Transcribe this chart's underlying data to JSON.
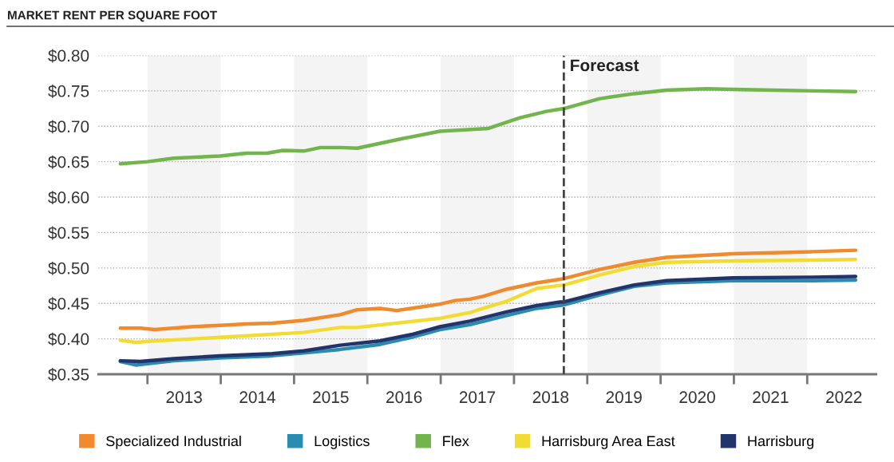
{
  "chart_data": {
    "type": "line",
    "title": "MARKET RENT PER SQUARE FOOT",
    "xlim": [
      2012.33,
      2022.94
    ],
    "ylim": [
      0.35,
      0.8
    ],
    "xticks": [
      {
        "value": 2013,
        "label": null
      },
      {
        "value": 2013.5,
        "label": "2013"
      },
      {
        "value": 2014,
        "label": null
      },
      {
        "value": 2014.5,
        "label": "2014"
      },
      {
        "value": 2015,
        "label": null
      },
      {
        "value": 2015.5,
        "label": "2015"
      },
      {
        "value": 2016,
        "label": null
      },
      {
        "value": 2016.5,
        "label": "2016"
      },
      {
        "value": 2017,
        "label": null
      },
      {
        "value": 2017.5,
        "label": "2017"
      },
      {
        "value": 2018,
        "label": null
      },
      {
        "value": 2018.5,
        "label": "2018"
      },
      {
        "value": 2019,
        "label": null
      },
      {
        "value": 2019.5,
        "label": "2019"
      },
      {
        "value": 2020,
        "label": null
      },
      {
        "value": 2020.5,
        "label": "2020"
      },
      {
        "value": 2021,
        "label": null
      },
      {
        "value": 2021.5,
        "label": "2021"
      },
      {
        "value": 2022,
        "label": null
      },
      {
        "value": 2022.5,
        "label": "2022"
      }
    ],
    "yticks": [
      {
        "value": 0.35,
        "label": "$0.35"
      },
      {
        "value": 0.4,
        "label": "$0.40"
      },
      {
        "value": 0.45,
        "label": "$0.45"
      },
      {
        "value": 0.5,
        "label": "$0.50"
      },
      {
        "value": 0.55,
        "label": "$0.55"
      },
      {
        "value": 0.6,
        "label": "$0.60"
      },
      {
        "value": 0.65,
        "label": "$0.65"
      },
      {
        "value": 0.7,
        "label": "$0.70"
      },
      {
        "value": 0.75,
        "label": "$0.75"
      },
      {
        "value": 0.8,
        "label": "$0.80"
      }
    ],
    "grid": "y",
    "legend": "bottom",
    "marker": "none",
    "line_style": "solid",
    "bands": [
      {
        "axis": "x",
        "from": 2013,
        "to": 2014,
        "color": "#f4f4f4"
      },
      {
        "axis": "x",
        "from": 2015,
        "to": 2016,
        "color": "#f4f4f4"
      },
      {
        "axis": "x",
        "from": 2017,
        "to": 2018,
        "color": "#f4f4f4"
      },
      {
        "axis": "x",
        "from": 2019,
        "to": 2020,
        "color": "#f4f4f4"
      },
      {
        "axis": "x",
        "from": 2021,
        "to": 2022,
        "color": "#f4f4f4"
      }
    ],
    "ref_lines": [
      {
        "axis": "x",
        "value": 2018.68,
        "label": "Forecast",
        "color": "#444444",
        "line_style": "dashed"
      }
    ],
    "series": [
      {
        "name": "Specialized Industrial",
        "color": "#f08a2c",
        "x": [
          2012.63,
          2012.9,
          2013.1,
          2013.6,
          2013.99,
          2014.35,
          2014.7,
          2015.13,
          2015.63,
          2015.86,
          2016.17,
          2016.4,
          2016.8,
          2016.99,
          2017.2,
          2017.4,
          2017.58,
          2017.9,
          2018.31,
          2018.63,
          2018.68,
          2019.17,
          2019.64,
          2020.08,
          2020.99,
          2022.08,
          2022.66
        ],
        "values": [
          0.415,
          0.415,
          0.413,
          0.417,
          0.419,
          0.421,
          0.422,
          0.426,
          0.434,
          0.441,
          0.443,
          0.44,
          0.446,
          0.449,
          0.454,
          0.456,
          0.46,
          0.47,
          0.479,
          0.484,
          0.485,
          0.498,
          0.508,
          0.515,
          0.52,
          0.523,
          0.525
        ]
      },
      {
        "name": "Logistics",
        "color": "#2a8bb0",
        "x": [
          2012.63,
          2012.84,
          2013.36,
          2013.99,
          2014.7,
          2015.13,
          2015.63,
          2016.17,
          2016.6,
          2016.99,
          2017.4,
          2017.9,
          2018.31,
          2018.63,
          2018.68,
          2019.17,
          2019.64,
          2020.08,
          2020.99,
          2022.08,
          2022.66
        ],
        "values": [
          0.368,
          0.363,
          0.369,
          0.373,
          0.376,
          0.38,
          0.385,
          0.392,
          0.402,
          0.413,
          0.42,
          0.433,
          0.443,
          0.447,
          0.448,
          0.462,
          0.474,
          0.479,
          0.482,
          0.482,
          0.483
        ]
      },
      {
        "name": "Flex",
        "color": "#72b54c",
        "x": [
          2012.63,
          2013.0,
          2013.36,
          2013.99,
          2014.35,
          2014.63,
          2014.85,
          2015.13,
          2015.36,
          2015.63,
          2015.86,
          2016.45,
          2016.99,
          2017.65,
          2018.08,
          2018.44,
          2018.68,
          2019.17,
          2019.64,
          2020.08,
          2020.62,
          2020.99,
          2021.54,
          2022.08,
          2022.66
        ],
        "values": [
          0.647,
          0.65,
          0.655,
          0.658,
          0.662,
          0.662,
          0.666,
          0.665,
          0.67,
          0.67,
          0.669,
          0.682,
          0.693,
          0.697,
          0.712,
          0.721,
          0.725,
          0.739,
          0.746,
          0.751,
          0.753,
          0.752,
          0.751,
          0.75,
          0.749
        ]
      },
      {
        "name": "Harrisburg Area East",
        "color": "#f2dc34",
        "x": [
          2012.63,
          2012.84,
          2013.1,
          2013.99,
          2015.13,
          2015.63,
          2015.86,
          2016.99,
          2017.4,
          2017.58,
          2017.9,
          2018.31,
          2018.68,
          2019.17,
          2019.64,
          2020.08,
          2020.99,
          2022.08,
          2022.66
        ],
        "values": [
          0.398,
          0.395,
          0.397,
          0.402,
          0.409,
          0.416,
          0.416,
          0.429,
          0.437,
          0.443,
          0.453,
          0.471,
          0.476,
          0.49,
          0.502,
          0.508,
          0.51,
          0.511,
          0.512
        ]
      },
      {
        "name": "Harrisburg",
        "color": "#23336b",
        "x": [
          2012.63,
          2012.9,
          2013.36,
          2013.99,
          2014.7,
          2015.13,
          2015.63,
          2016.17,
          2016.6,
          2016.99,
          2017.4,
          2017.9,
          2018.31,
          2018.63,
          2018.68,
          2019.17,
          2019.64,
          2020.08,
          2020.99,
          2022.08,
          2022.66
        ],
        "values": [
          0.369,
          0.368,
          0.372,
          0.376,
          0.379,
          0.383,
          0.391,
          0.397,
          0.406,
          0.417,
          0.425,
          0.438,
          0.447,
          0.452,
          0.452,
          0.465,
          0.476,
          0.482,
          0.486,
          0.487,
          0.488
        ]
      }
    ]
  }
}
